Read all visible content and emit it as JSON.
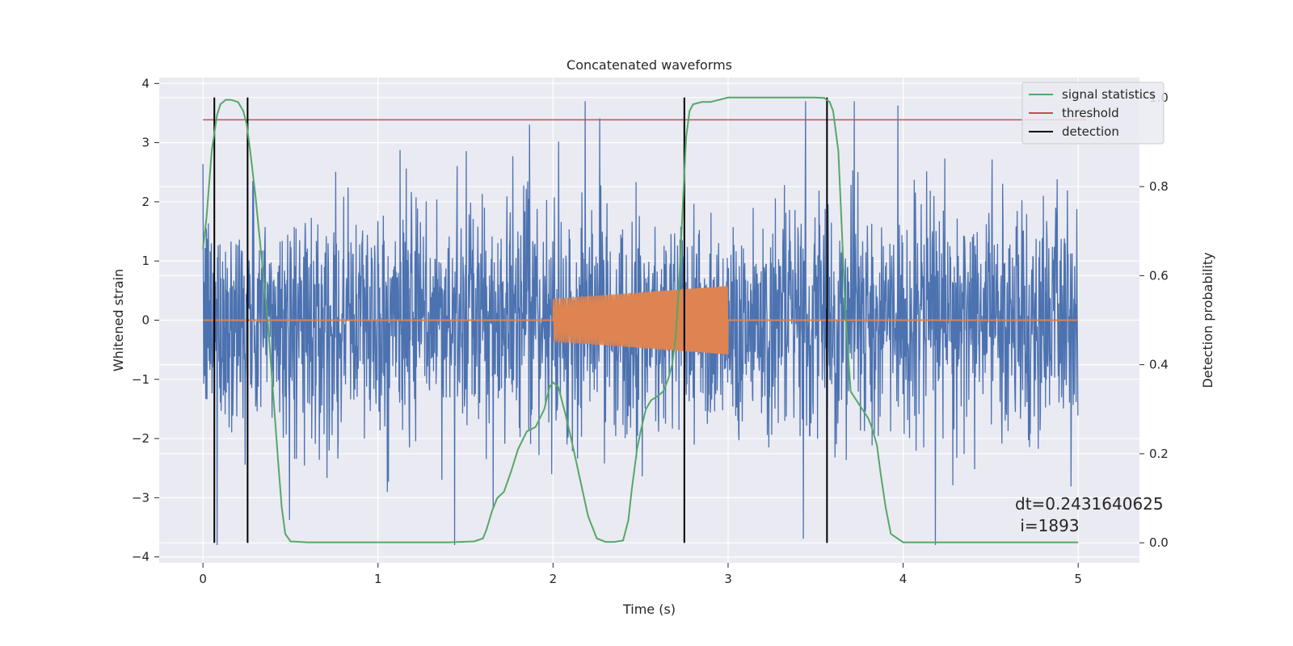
{
  "chart_data": {
    "type": "line",
    "title": "Concatenated waveforms",
    "xlabel": "Time (s)",
    "ylabel": "Whitened strain",
    "y2label": "Detection probability",
    "xlim": [
      -0.25,
      5.35
    ],
    "ylim": [
      -4.1,
      4.1
    ],
    "y2lim": [
      -0.045,
      1.045
    ],
    "x_ticks": [
      0,
      1,
      2,
      3,
      4,
      5
    ],
    "y_ticks": [
      -4,
      -3,
      -2,
      -1,
      0,
      1,
      2,
      3,
      4
    ],
    "y2_ticks": [
      0.0,
      0.2,
      0.4,
      0.6,
      0.8,
      1.0
    ],
    "x_tick_labels": [
      "0",
      "1",
      "2",
      "3",
      "4",
      "5"
    ],
    "y_tick_labels": [
      "−4",
      "−3",
      "−2",
      "−1",
      "0",
      "1",
      "2",
      "3",
      "4"
    ],
    "y2_tick_labels": [
      "0.0",
      "0.2",
      "0.4",
      "0.6",
      "0.8",
      "1.0"
    ],
    "grid": true,
    "legend_position": "top-right",
    "colors": {
      "background": "#eaeaf2",
      "grid": "#ffffff",
      "noise": "#4c72b0",
      "injection": "#dd8452",
      "signal_statistics": "#55a868",
      "threshold": "#c44e52",
      "detection": "#000000"
    },
    "series": [
      {
        "name": "signal statistics",
        "axis": "right",
        "x": [
          0.0,
          0.02,
          0.05,
          0.08,
          0.1,
          0.13,
          0.16,
          0.2,
          0.23,
          0.25,
          0.27,
          0.3,
          0.33,
          0.37,
          0.4,
          0.43,
          0.45,
          0.47,
          0.5,
          0.6,
          0.8,
          1.0,
          1.2,
          1.4,
          1.55,
          1.6,
          1.62,
          1.65,
          1.68,
          1.72,
          1.76,
          1.8,
          1.85,
          1.9,
          1.95,
          1.98,
          2.0,
          2.03,
          2.07,
          2.1,
          2.15,
          2.2,
          2.25,
          2.3,
          2.35,
          2.4,
          2.43,
          2.45,
          2.48,
          2.5,
          2.53,
          2.56,
          2.6,
          2.63,
          2.66,
          2.68,
          2.7,
          2.72,
          2.74,
          2.76,
          2.78,
          2.8,
          2.85,
          2.9,
          3.0,
          3.2,
          3.4,
          3.5,
          3.55,
          3.58,
          3.6,
          3.63,
          3.65,
          3.67,
          3.7,
          3.75,
          3.8,
          3.82,
          3.85,
          3.87,
          3.9,
          3.93,
          4.0,
          4.5,
          5.0
        ],
        "y": [
          0.66,
          0.73,
          0.88,
          0.96,
          0.985,
          0.995,
          0.995,
          0.99,
          0.97,
          0.94,
          0.88,
          0.78,
          0.66,
          0.5,
          0.34,
          0.18,
          0.08,
          0.02,
          0.003,
          0.001,
          0.001,
          0.001,
          0.001,
          0.001,
          0.003,
          0.01,
          0.03,
          0.07,
          0.1,
          0.115,
          0.16,
          0.21,
          0.25,
          0.26,
          0.3,
          0.35,
          0.36,
          0.35,
          0.29,
          0.24,
          0.15,
          0.06,
          0.01,
          0.002,
          0.002,
          0.005,
          0.05,
          0.12,
          0.21,
          0.25,
          0.3,
          0.32,
          0.33,
          0.34,
          0.37,
          0.4,
          0.46,
          0.58,
          0.75,
          0.91,
          0.97,
          0.985,
          0.99,
          0.99,
          1.0,
          1.0,
          1.0,
          1.0,
          0.999,
          0.99,
          0.97,
          0.88,
          0.7,
          0.52,
          0.34,
          0.31,
          0.28,
          0.26,
          0.22,
          0.16,
          0.08,
          0.02,
          0.001,
          0.001,
          0.001
        ]
      },
      {
        "name": "threshold",
        "axis": "right",
        "x": [
          0.0,
          5.05
        ],
        "y": [
          0.95,
          0.95
        ]
      },
      {
        "name": "detection",
        "axis": "right",
        "x": [
          0.065,
          0.255,
          2.75,
          3.565
        ],
        "y_range": [
          0.0,
          1.0
        ]
      }
    ],
    "background_series": [
      {
        "role": "whitened noise",
        "x_range": [
          0.0,
          5.0
        ],
        "y_range": [
          -3.8,
          3.7
        ],
        "core_band": [
          -0.8,
          0.7
        ]
      },
      {
        "role": "injected chirp",
        "x_range": [
          2.0,
          3.0
        ],
        "amplitude_start": 0.36,
        "amplitude_end": 0.58
      }
    ],
    "annotation": {
      "dt_text": "dt=0.2431640625",
      "i_text": " i=1893"
    }
  }
}
